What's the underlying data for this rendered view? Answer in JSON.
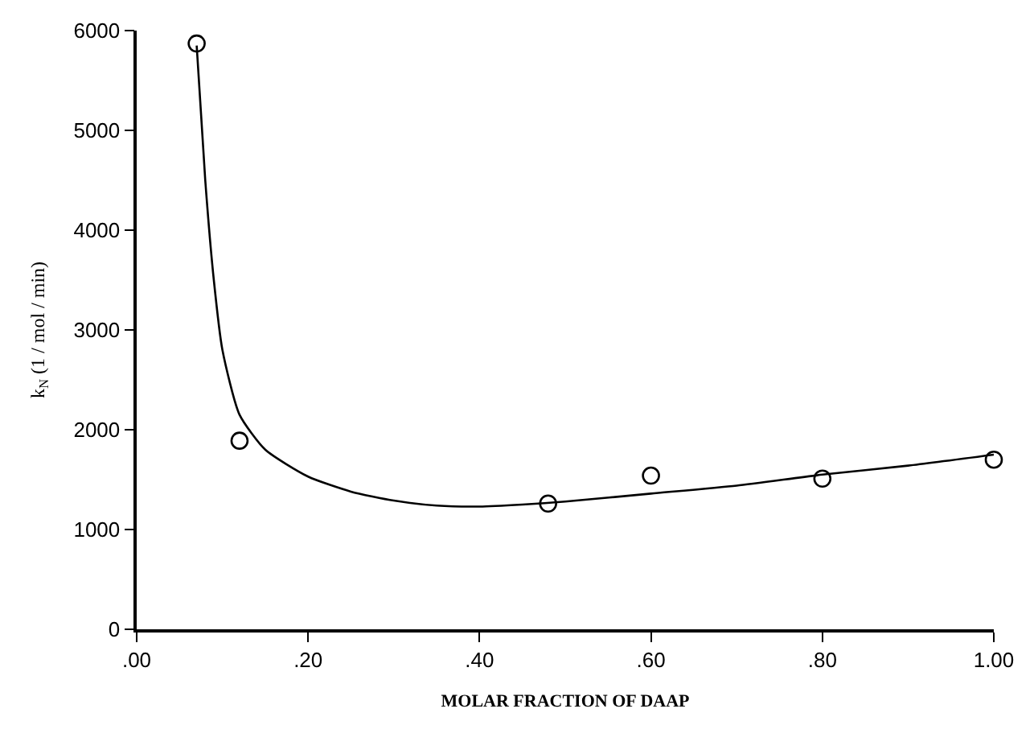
{
  "chart_data": {
    "type": "scatter",
    "xlabel": "MOLAR FRACTION OF DAAP",
    "ylabel": "k$_{N}$ (1 / mol / min)",
    "xlim": [
      0,
      1
    ],
    "ylim": [
      0,
      6000
    ],
    "xticks": [
      {
        "value": 0,
        "label": ".00"
      },
      {
        "value": 0.2,
        "label": ".20"
      },
      {
        "value": 0.4,
        "label": ".40"
      },
      {
        "value": 0.6,
        "label": ".60"
      },
      {
        "value": 0.8,
        "label": ".80"
      },
      {
        "value": 1,
        "label": "1.00"
      }
    ],
    "yticks": [
      0,
      1000,
      2000,
      3000,
      4000,
      5000,
      6000
    ],
    "series": [
      {
        "type": "line",
        "color": "#000000",
        "marker": "none",
        "line_style": "solid",
        "x": [
          0.07,
          0.08,
          0.09,
          0.1,
          0.12,
          0.15,
          0.2,
          0.25,
          0.3,
          0.35,
          0.4,
          0.45,
          0.5,
          0.6,
          0.7,
          0.8,
          0.9,
          1.0
        ],
        "values": [
          5850,
          4500,
          3500,
          2800,
          2150,
          1800,
          1530,
          1380,
          1290,
          1240,
          1230,
          1250,
          1280,
          1360,
          1440,
          1550,
          1640,
          1750
        ]
      },
      {
        "color": "#000000",
        "marker": "circle",
        "x": [
          0.07,
          0.12,
          0.48,
          0.6,
          0.8,
          1.0
        ],
        "values": [
          5870,
          1890,
          1260,
          1540,
          1510,
          1700
        ]
      }
    ]
  }
}
